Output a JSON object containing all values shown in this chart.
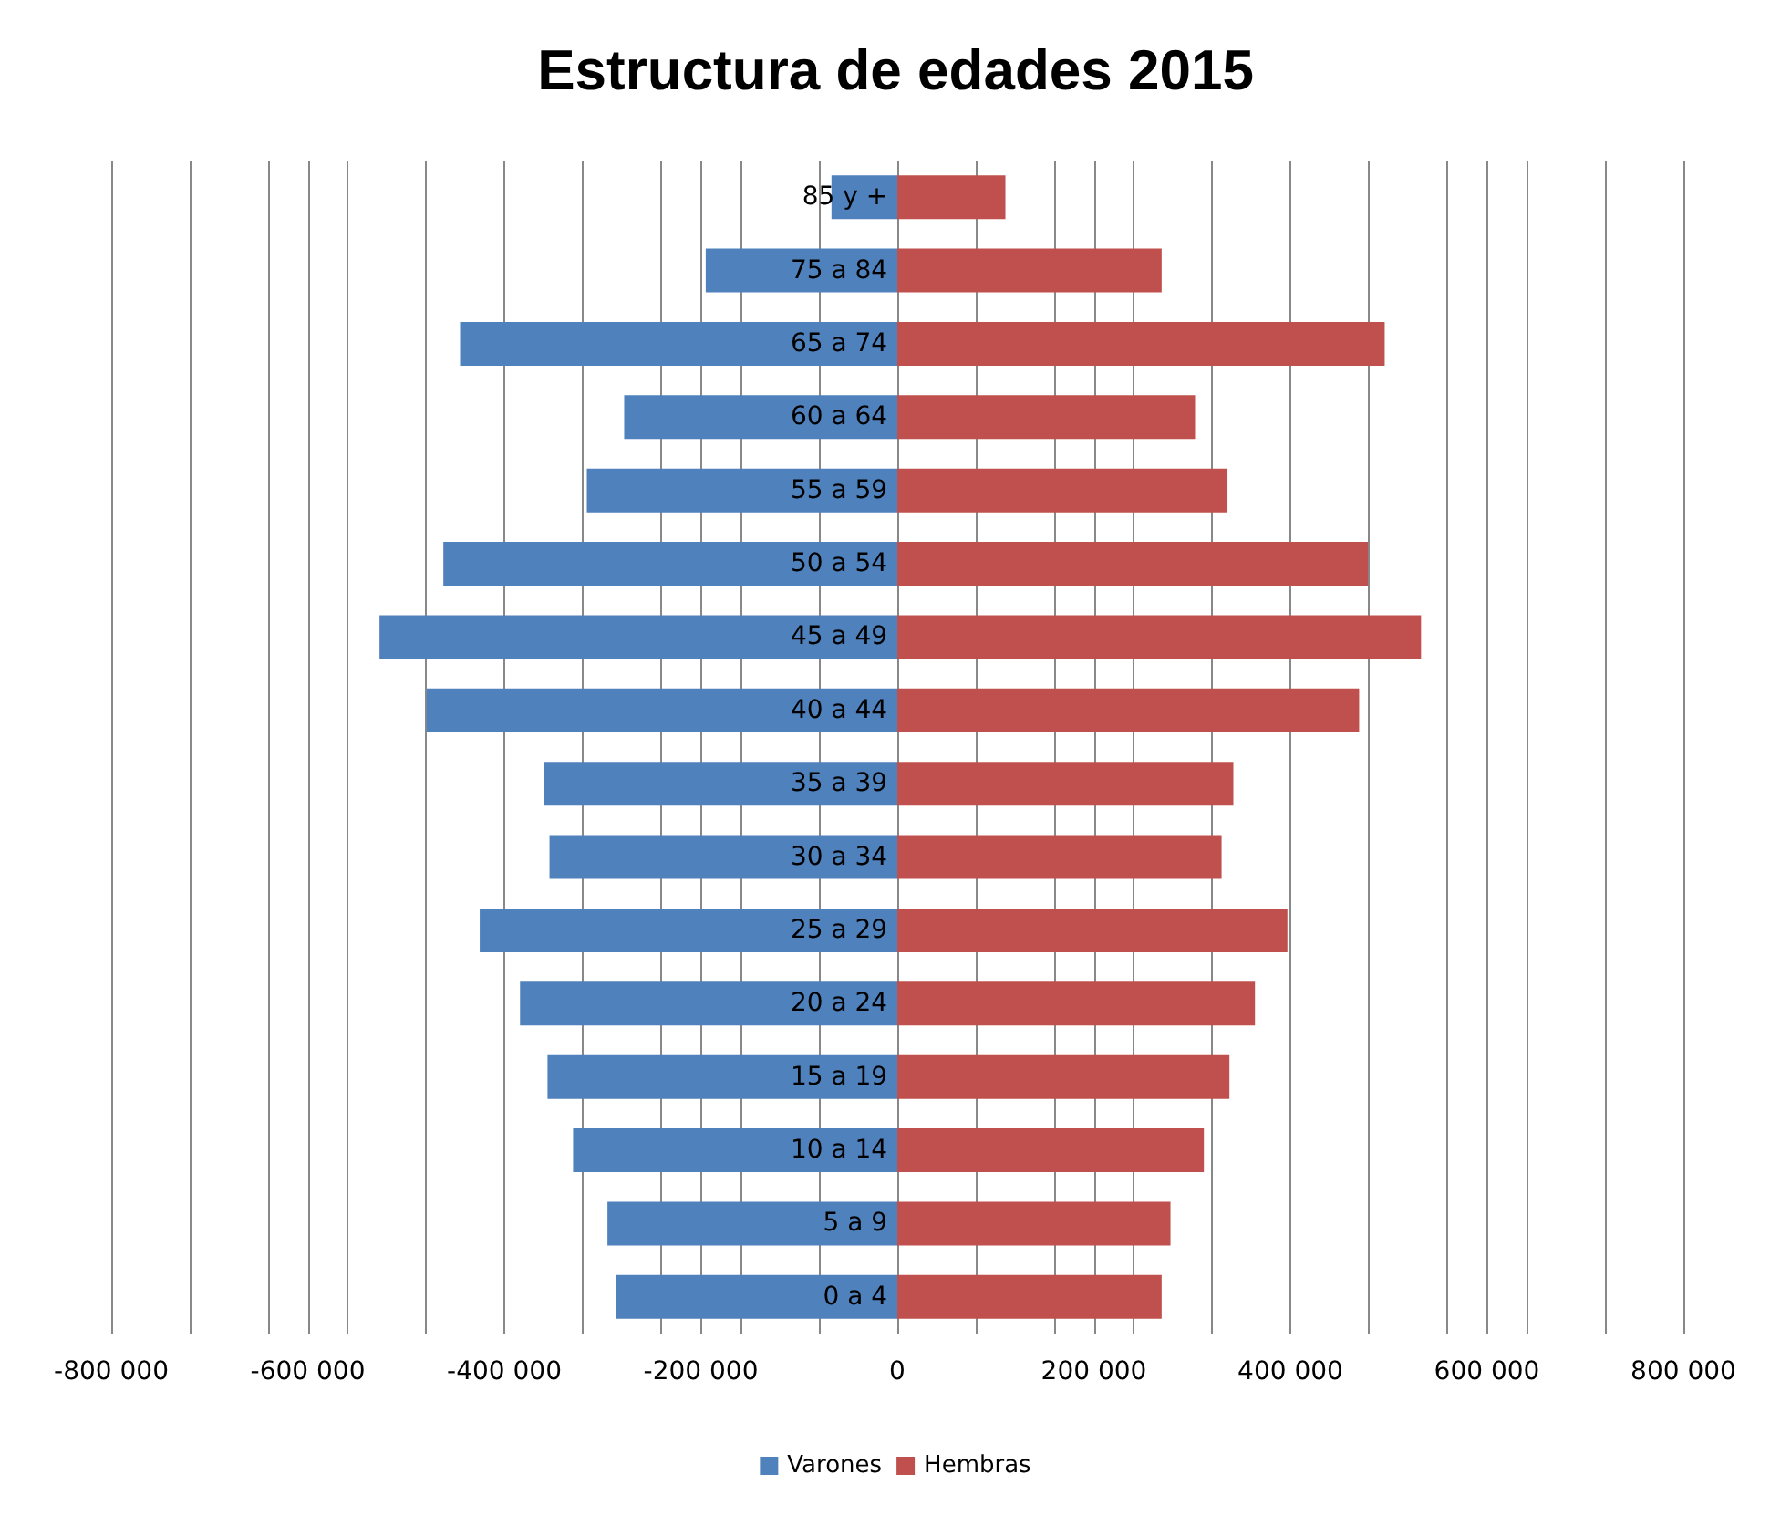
{
  "chart_data": {
    "type": "bar",
    "orientation": "horizontal",
    "title": "Estructura de edades 2015",
    "categories": [
      "85 y +",
      "75 a 84",
      "65 a 74",
      "60 a 64",
      "55 a 59",
      "50 a 54",
      "45 a 49",
      "40 a 44",
      "35 a 39",
      "30 a 34",
      "25 a 29",
      "20 a 24",
      "15 a 19",
      "10 a 14",
      "5 a 9",
      "0 a 4"
    ],
    "series": [
      {
        "name": "Varones",
        "color": "#4f81bd",
        "values": [
          -67000,
          -195000,
          -445000,
          -278000,
          -316000,
          -462000,
          -527000,
          -479000,
          -360000,
          -354000,
          -425000,
          -384000,
          -356000,
          -330000,
          -295000,
          -286000
        ]
      },
      {
        "name": "Hembras",
        "color": "#c0504d",
        "values": [
          110000,
          269000,
          496000,
          303000,
          336000,
          479000,
          533000,
          470000,
          342000,
          330000,
          397000,
          364000,
          338000,
          312000,
          278000,
          269000
        ]
      }
    ],
    "xlim": [
      -800000,
      800000
    ],
    "xticks": [
      {
        "value": -800000,
        "label": "-800 000"
      },
      {
        "value": -720000,
        "label": null
      },
      {
        "value": -640000,
        "label": null
      },
      {
        "value": -600000,
        "label": "-600 000"
      },
      {
        "value": -560000,
        "label": null
      },
      {
        "value": -480000,
        "label": null
      },
      {
        "value": -400000,
        "label": "-400 000"
      },
      {
        "value": -320000,
        "label": null
      },
      {
        "value": -240000,
        "label": null
      },
      {
        "value": -200000,
        "label": "-200 000"
      },
      {
        "value": -160000,
        "label": null
      },
      {
        "value": -80000,
        "label": null
      },
      0,
      {
        "value": 80000,
        "label": null
      },
      {
        "value": 160000,
        "label": null
      },
      {
        "value": 200000,
        "label": "200 000"
      },
      {
        "value": 240000,
        "label": null
      },
      {
        "value": 320000,
        "label": null
      },
      {
        "value": 400000,
        "label": "400 000"
      },
      {
        "value": 480000,
        "label": null
      },
      {
        "value": 560000,
        "label": null
      },
      {
        "value": 600000,
        "label": "600 000"
      },
      {
        "value": 640000,
        "label": null
      },
      {
        "value": 720000,
        "label": null
      },
      {
        "value": 800000,
        "label": "800 000"
      }
    ],
    "stacked": true,
    "grid": "x",
    "legend": "bottom"
  }
}
